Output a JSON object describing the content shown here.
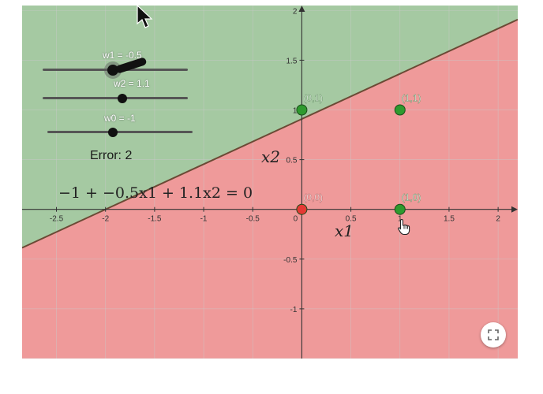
{
  "colors": {
    "region_positive": "#a5c9a2",
    "region_negative": "#ef9a9a",
    "point_positive": "#2e9a2e",
    "point_negative": "#e53935",
    "boundary": "#6b4a35",
    "grid": "#c9c9c9"
  },
  "sliders": [
    {
      "label": "w1 = -0.5",
      "value": -0.5
    },
    {
      "label": "w2 = 1.1",
      "value": 1.1
    },
    {
      "label": "w0 = -1",
      "value": -1
    }
  ],
  "error": {
    "label": "Error: 2"
  },
  "equation": {
    "text": "−1 + −0.5x1 + 1.1x2 = 0"
  },
  "axes": {
    "xlabel": "x1",
    "ylabel": "x2",
    "xlim": [
      -2.85,
      2.2
    ],
    "ylim": [
      -1.5,
      2.05
    ],
    "x_ticks": [
      "-2.5",
      "-2",
      "-1.5",
      "-1",
      "-0.5",
      "0",
      "0.5",
      "1",
      "1.5",
      "2"
    ],
    "y_ticks": [
      "-1",
      "-0.5",
      "0.5",
      "1",
      "1.5",
      "2"
    ]
  },
  "chart_data": {
    "type": "scatter",
    "points": [
      {
        "label": "(0,0)",
        "x": 0,
        "y": 0,
        "class": "negative"
      },
      {
        "label": "(0,1)",
        "x": 0,
        "y": 1,
        "class": "positive"
      },
      {
        "label": "(1,1)",
        "x": 1,
        "y": 1,
        "class": "positive"
      },
      {
        "label": "(1,0)",
        "x": 1,
        "y": 0,
        "class": "positive"
      }
    ],
    "boundary": {
      "w0": -1,
      "w1": -0.5,
      "w2": 1.1
    },
    "grid": true
  },
  "toolbar": {
    "fullscreen_icon": "fullscreen-icon"
  },
  "cursor": {
    "icons": [
      "arrow-cursor-icon",
      "hand-cursor-icon"
    ]
  }
}
